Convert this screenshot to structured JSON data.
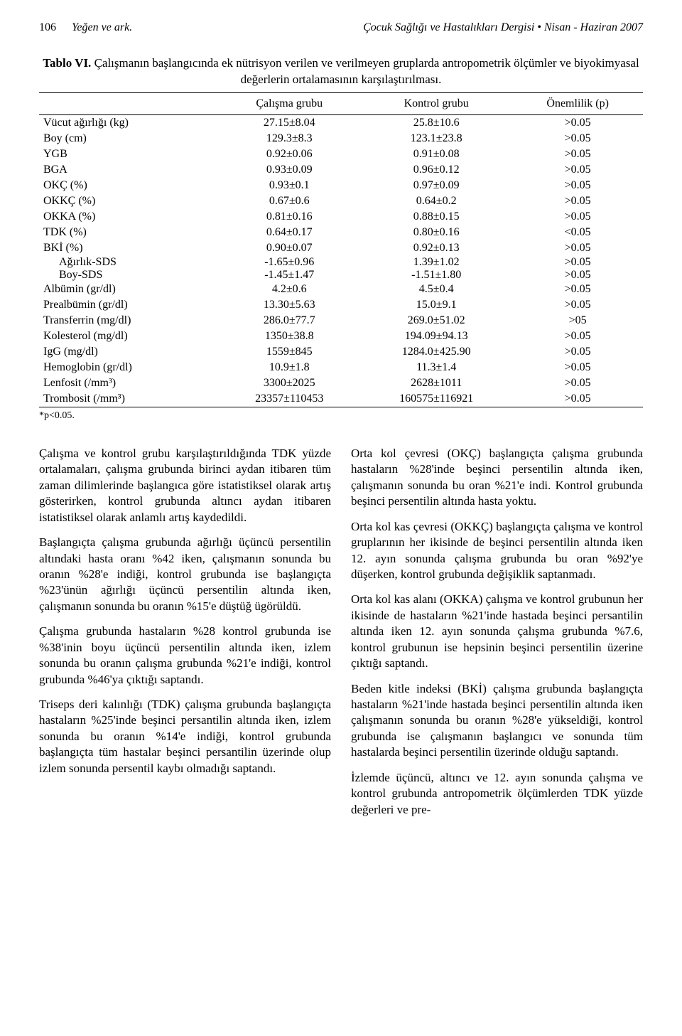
{
  "header": {
    "page_number": "106",
    "authors": "Yeğen ve ark.",
    "journal_issue": "Çocuk Sağlığı ve Hastalıkları Dergisi • Nisan - Haziran 2007"
  },
  "table": {
    "number": "Tablo VI.",
    "caption": "Çalışmanın başlangıcında ek nütrisyon verilen ve verilmeyen gruplarda antropometrik ölçümler ve biyokimyasal değerlerin ortalamasının karşılaştırılması.",
    "columns": {
      "col0": "",
      "col1": "Çalışma grubu",
      "col2": "Kontrol grubu",
      "col3": "Önemlilik (p)"
    },
    "rows": [
      {
        "label": "Vücut ağırlığı (kg)",
        "c1": "27.15±8.04",
        "c2": "25.8±10.6",
        "c3": ">0.05"
      },
      {
        "label": "Boy (cm)",
        "c1": "129.3±8.3",
        "c2": "123.1±23.8",
        "c3": ">0.05"
      },
      {
        "label": "YGB",
        "c1": "0.92±0.06",
        "c2": "0.91±0.08",
        "c3": ">0.05"
      },
      {
        "label": "BGA",
        "c1": "0.93±0.09",
        "c2": "0.96±0.12",
        "c3": ">0.05"
      },
      {
        "label": "OKÇ (%)",
        "c1": "0.93±0.1",
        "c2": "0.97±0.09",
        "c3": ">0.05"
      },
      {
        "label": "OKKÇ (%)",
        "c1": "0.67±0.6",
        "c2": "0.64±0.2",
        "c3": ">0.05"
      },
      {
        "label": "OKKA (%)",
        "c1": "0.81±0.16",
        "c2": "0.88±0.15",
        "c3": ">0.05"
      },
      {
        "label": "TDK (%)",
        "c1": "0.64±0.17",
        "c2": "0.80±0.16",
        "c3": "<0.05"
      },
      {
        "label": "BKİ (%)",
        "c1": "0.90±0.07",
        "c2": "0.92±0.13",
        "c3": ">0.05"
      },
      {
        "label": "Ağırlık-SDS",
        "c1": "-1.65±0.96",
        "c2": "1.39±1.02",
        "c3": ">0.05",
        "sub": true
      },
      {
        "label": "Boy-SDS",
        "c1": "-1.45±1.47",
        "c2": "-1.51±1.80",
        "c3": ">0.05",
        "sub": true
      },
      {
        "label": "Albümin (gr/dl)",
        "c1": "4.2±0.6",
        "c2": "4.5±0.4",
        "c3": ">0.05"
      },
      {
        "label": "Prealbümin (gr/dl)",
        "c1": "13.30±5.63",
        "c2": "15.0±9.1",
        "c3": ">0.05"
      },
      {
        "label": "Transferrin (mg/dl)",
        "c1": "286.0±77.7",
        "c2": "269.0±51.02",
        "c3": ">05"
      },
      {
        "label": "Kolesterol (mg/dl)",
        "c1": "1350±38.8",
        "c2": "194.09±94.13",
        "c3": ">0.05"
      },
      {
        "label": "IgG (mg/dl)",
        "c1": "1559±845",
        "c2": "1284.0±425.90",
        "c3": ">0.05"
      },
      {
        "label": "Hemoglobin (gr/dl)",
        "c1": "10.9±1.8",
        "c2": "11.3±1.4",
        "c3": ">0.05"
      },
      {
        "label": "Lenfosit (/mm³)",
        "c1": "3300±2025",
        "c2": "2628±1011",
        "c3": ">0.05"
      },
      {
        "label": "Trombosit (/mm³)",
        "c1": "23357±110453",
        "c2": "160575±116921",
        "c3": ">0.05"
      }
    ],
    "footnote": "*p<0.05."
  },
  "body": {
    "left": [
      "Çalışma ve kontrol grubu karşılaştırıldığında TDK yüzde ortalamaları, çalışma grubunda birinci aydan itibaren tüm zaman dilimlerinde başlangıca göre istatistiksel olarak artış gösterirken, kontrol grubunda altıncı aydan itibaren istatistiksel olarak anlamlı artış kaydedildi.",
      "Başlangıçta çalışma grubunda ağırlığı üçüncü persentilin altındaki hasta oranı %42 iken, çalışmanın sonunda bu oranın %28'e indiği, kontrol grubunda ise başlangıçta %23'ünün ağırlığı üçüncü persentilin altında iken, çalışmanın sonunda bu oranın %15'e düştüğ ügörüldü.",
      "Çalışma grubunda hastaların %28 kontrol grubunda ise %38'inin boyu üçüncü persentilin altında iken, izlem sonunda bu oranın çalışma grubunda %21'e indiği, kontrol grubunda %46'ya çıktığı saptandı.",
      "Triseps deri kalınlığı (TDK) çalışma grubunda başlangıçta hastaların %25'inde beşinci persantilin altında iken, izlem sonunda bu oranın %14'e indiği, kontrol grubunda başlangıçta tüm hastalar beşinci persantilin üzerinde olup izlem sonunda persentil kaybı olmadığı saptandı."
    ],
    "right": [
      "Orta kol çevresi (OKÇ) başlangıçta çalışma grubunda hastaların %28'inde beşinci persentilin altında iken, çalışmanın sonunda bu oran %21'e indi. Kontrol grubunda beşinci persentilin altında hasta yoktu.",
      "Orta kol kas çevresi (OKKÇ) başlangıçta çalışma ve kontrol gruplarının her ikisinde de beşinci persentilin altında iken 12. ayın sonunda çalışma grubunda bu oran %92'ye düşerken, kontrol grubunda değişiklik saptanmadı.",
      "Orta kol kas alanı (OKKA) çalışma ve kontrol grubunun her ikisinde de hastaların %21'inde hastada beşinci persantilin altında iken 12. ayın sonunda çalışma grubunda %7.6, kontrol grubunun ise hepsinin beşinci persentilin üzerine çıktığı saptandı.",
      "Beden kitle indeksi (BKİ) çalışma grubunda başlangıçta hastaların %21'inde hastada beşinci persentilin altında iken çalışmanın sonunda bu oranın %28'e yükseldiği, kontrol grubunda ise çalışmanın başlangıcı ve sonunda tüm hastalarda beşinci persentilin üzerinde olduğu saptandı.",
      "İzlemde üçüncü, altıncı ve 12. ayın sonunda çalışma ve kontrol grubunda antropometrik ölçümlerden TDK yüzde değerleri ve pre-"
    ]
  }
}
